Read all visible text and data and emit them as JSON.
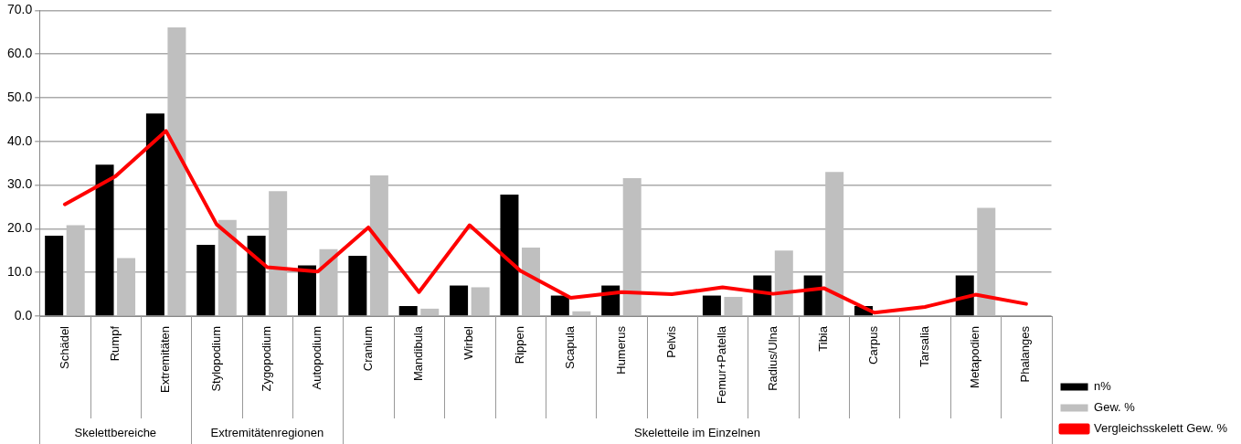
{
  "chart_data": {
    "type": "bar",
    "categories": [
      "Schädel",
      "Rumpf",
      "Extremitäten",
      "Stylopodium",
      "Zygopodium",
      "Autopodium",
      "Cranium",
      "Mandibula",
      "Wirbel",
      "Rippen",
      "Scapula",
      "Humerus",
      "Pelvis",
      "Femur+Patella",
      "Radius/Ulna",
      "Tibia",
      "Carpus",
      "Tarsalia",
      "Metapodien",
      "Phalanges"
    ],
    "series": [
      {
        "name": "n%",
        "color": "#000000",
        "values": [
          18.4,
          34.7,
          46.4,
          16.3,
          18.4,
          11.6,
          13.8,
          2.3,
          7.0,
          27.8,
          4.7,
          7.0,
          null,
          4.7,
          9.3,
          9.3,
          2.3,
          null,
          9.3,
          null
        ]
      },
      {
        "name": "Gew. %",
        "color": "#bfbfbf",
        "values": [
          20.8,
          13.3,
          66.1,
          22.0,
          28.6,
          15.3,
          32.2,
          1.7,
          6.6,
          15.7,
          1.1,
          31.6,
          null,
          4.4,
          15.0,
          33.0,
          null,
          null,
          24.8,
          null
        ]
      },
      {
        "name": "Vergleichsskelett Gew. %",
        "type": "line",
        "color": "#ff0000",
        "values": [
          25.6,
          32.0,
          42.4,
          21.0,
          11.2,
          10.2,
          20.3,
          5.5,
          20.8,
          10.4,
          4.2,
          5.5,
          5.0,
          6.6,
          5.1,
          6.4,
          0.8,
          2.1,
          4.9,
          2.8
        ]
      }
    ],
    "ylim": [
      0,
      70
    ],
    "yticks": [
      {
        "value": 0,
        "label": "0.0"
      },
      {
        "value": 10,
        "label": "10.0"
      },
      {
        "value": 20,
        "label": "20.0"
      },
      {
        "value": 30,
        "label": "30.0"
      },
      {
        "value": 40,
        "label": "40.0"
      },
      {
        "value": 50,
        "label": "50.0"
      },
      {
        "value": 60,
        "label": "60.0"
      },
      {
        "value": 70,
        "label": "70.0"
      }
    ],
    "annotations": [
      "Skelettbereiche",
      "Extremitätenregionen",
      "Skeletteile im Einzelnen"
    ],
    "grid": "y",
    "legend": "bottom right",
    "marker": "none",
    "line_style": "solid"
  }
}
